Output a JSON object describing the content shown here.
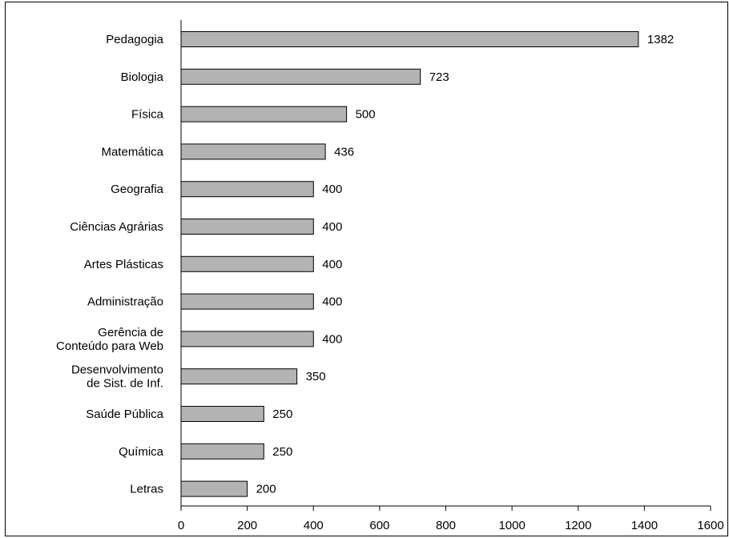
{
  "chart_data": {
    "type": "bar",
    "orientation": "horizontal",
    "categories": [
      [
        "Pedagogia"
      ],
      [
        "Biologia"
      ],
      [
        "Física"
      ],
      [
        "Matemática"
      ],
      [
        "Geografia"
      ],
      [
        "Ciências Agrárias"
      ],
      [
        "Artes Plásticas"
      ],
      [
        "Administração"
      ],
      [
        "Gerência de",
        "Conteúdo para Web"
      ],
      [
        "Desenvolvimento",
        "de Sist. de Inf."
      ],
      [
        "Saúde Pública"
      ],
      [
        "Química"
      ],
      [
        "Letras"
      ]
    ],
    "values": [
      1382,
      723,
      500,
      436,
      400,
      400,
      400,
      400,
      400,
      350,
      250,
      250,
      200
    ],
    "data_labels": [
      "1382",
      "723",
      "500",
      "436",
      "400",
      "400",
      "400",
      "400",
      "400",
      "350",
      "250",
      "250",
      "200"
    ],
    "xlim": [
      0,
      1600
    ],
    "xticks": [
      "0",
      "200",
      "400",
      "600",
      "800",
      "1000",
      "1200",
      "1400",
      "1600"
    ],
    "bar_color": "#b3b3b3",
    "grid": false,
    "legend": "none"
  }
}
